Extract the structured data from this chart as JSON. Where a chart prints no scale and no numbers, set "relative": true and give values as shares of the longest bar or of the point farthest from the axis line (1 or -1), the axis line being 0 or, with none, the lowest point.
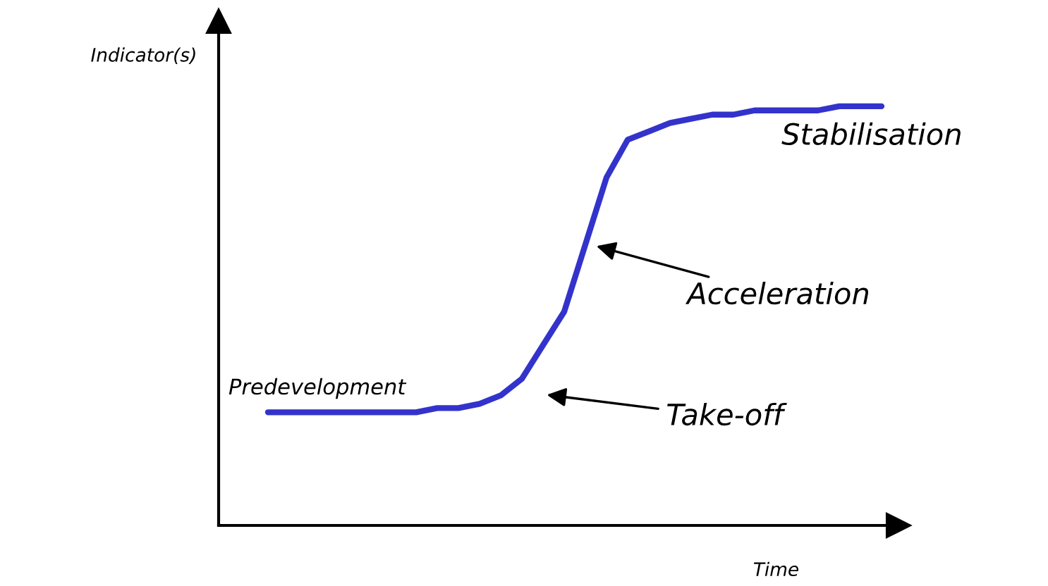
{
  "chart_data": {
    "type": "line",
    "relative": true,
    "xlabel": "Time",
    "ylabel": "Indicator(s)",
    "categories": [
      null,
      null,
      null,
      null,
      null,
      null,
      null,
      null,
      null,
      null,
      null,
      null,
      null,
      null,
      null,
      null,
      null,
      null,
      null,
      null,
      null,
      null,
      null,
      null,
      null,
      null,
      null,
      null,
      null,
      null
    ],
    "series": [
      {
        "color": "#3333cc",
        "values": [
          0.27,
          0.27,
          0.27,
          0.27,
          0.27,
          0.27,
          0.27,
          0.27,
          0.28,
          0.28,
          0.29,
          0.31,
          0.35,
          0.43,
          0.51,
          0.67,
          0.83,
          0.92,
          0.94,
          0.96,
          0.97,
          0.98,
          0.98,
          0.99,
          0.99,
          0.99,
          0.99,
          1.0,
          1.0,
          1.0
        ]
      }
    ],
    "annotations": [
      "Stabilisation",
      "Acceleration",
      "Take-off",
      "Predevelopment"
    ],
    "grid": false,
    "legend": false,
    "marker": "none",
    "line_style": "solid"
  }
}
